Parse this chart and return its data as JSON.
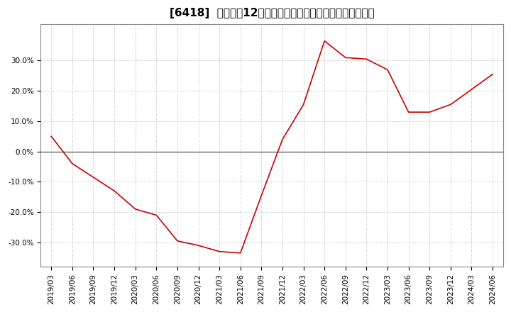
{
  "title": "[6418]  売上高の12か月移動合計の対前年同期増減率の推移",
  "x_labels": [
    "2019/03",
    "2019/06",
    "2019/09",
    "2019/12",
    "2020/03",
    "2020/06",
    "2020/09",
    "2020/12",
    "2021/03",
    "2021/06",
    "2021/09",
    "2021/12",
    "2022/03",
    "2022/06",
    "2022/09",
    "2022/12",
    "2023/03",
    "2023/06",
    "2023/09",
    "2023/12",
    "2024/03",
    "2024/06"
  ],
  "y_values": [
    0.05,
    -0.04,
    -0.085,
    -0.13,
    -0.19,
    -0.21,
    -0.295,
    -0.31,
    -0.33,
    -0.335,
    -0.145,
    0.04,
    0.155,
    0.365,
    0.31,
    0.305,
    0.27,
    0.13,
    0.13,
    0.155,
    0.205,
    0.255
  ],
  "line_color": "#cc0000",
  "background_color": "#ffffff",
  "plot_bg_color": "#ffffff",
  "grid_color": "#aaaaaa",
  "zero_line_color": "#555555",
  "ylim": [
    -0.38,
    0.42
  ],
  "yticks": [
    -0.3,
    -0.2,
    -0.1,
    0.0,
    0.1,
    0.2,
    0.3
  ],
  "title_fontsize": 11,
  "tick_fontsize": 7.5
}
